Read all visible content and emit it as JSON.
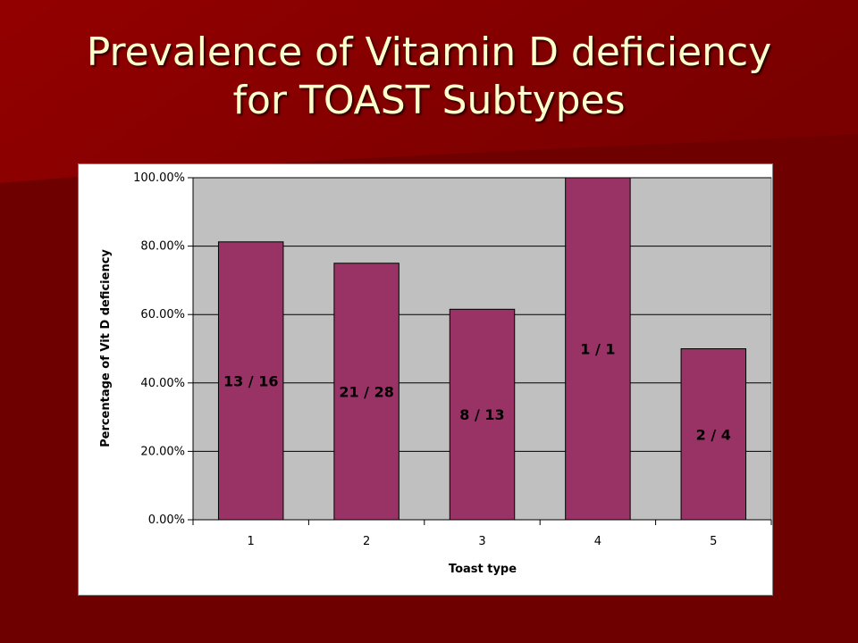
{
  "slide": {
    "title_line1": "Prevalence of Vitamin D deficiency",
    "title_line2": "for TOAST Subtypes"
  },
  "colors": {
    "background": "#6f0000",
    "background_highlight": "#8e0000",
    "title_text": "#ffffcc",
    "plot_area": "#c0c0c0",
    "bar_fill": "#993366",
    "gridline": "#000000"
  },
  "chart_data": {
    "type": "bar",
    "categories": [
      "1",
      "2",
      "3",
      "4",
      "5"
    ],
    "values": [
      81.25,
      75.0,
      61.54,
      100.0,
      50.0
    ],
    "data_labels": [
      "13 / 16",
      "21 / 28",
      "8 / 13",
      "1 / 1",
      "2 / 4"
    ],
    "xlabel": "Toast type",
    "ylabel": "Percentage of Vit D deficiency",
    "ylim": [
      0,
      100
    ],
    "y_ticks": [
      0,
      20,
      40,
      60,
      80,
      100
    ],
    "y_tick_labels": [
      "0.00%",
      "20.00%",
      "40.00%",
      "60.00%",
      "80.00%",
      "100.00%"
    ],
    "grid": true,
    "legend": "none"
  }
}
